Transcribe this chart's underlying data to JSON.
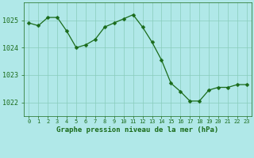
{
  "x": [
    0,
    1,
    2,
    3,
    4,
    5,
    6,
    7,
    8,
    9,
    10,
    11,
    12,
    13,
    14,
    15,
    16,
    17,
    18,
    19,
    20,
    21,
    22,
    23
  ],
  "y": [
    1024.9,
    1024.8,
    1025.1,
    1025.1,
    1024.6,
    1024.0,
    1024.1,
    1024.3,
    1024.75,
    1024.9,
    1025.05,
    1025.2,
    1024.75,
    1024.2,
    1023.55,
    1022.7,
    1022.4,
    1022.05,
    1022.05,
    1022.45,
    1022.55,
    1022.55,
    1022.65,
    1022.65
  ],
  "line_color": "#1a6b1a",
  "marker_color": "#1a6b1a",
  "bg_color": "#b0e8e8",
  "plot_bg_color": "#b0e8e8",
  "grid_color": "#88ccbb",
  "xlabel": "Graphe pression niveau de la mer (hPa)",
  "tick_color": "#1a6b1a",
  "ylabel_ticks": [
    1022,
    1023,
    1024,
    1025
  ],
  "ylim": [
    1021.5,
    1025.65
  ],
  "xlim": [
    -0.5,
    23.5
  ],
  "marker_size": 2.5,
  "xtick_labels": [
    "0",
    "1",
    "2",
    "3",
    "4",
    "5",
    "6",
    "7",
    "8",
    "9",
    "10",
    "11",
    "12",
    "13",
    "14",
    "15",
    "16",
    "17",
    "18",
    "19",
    "20",
    "21",
    "22",
    "23"
  ]
}
